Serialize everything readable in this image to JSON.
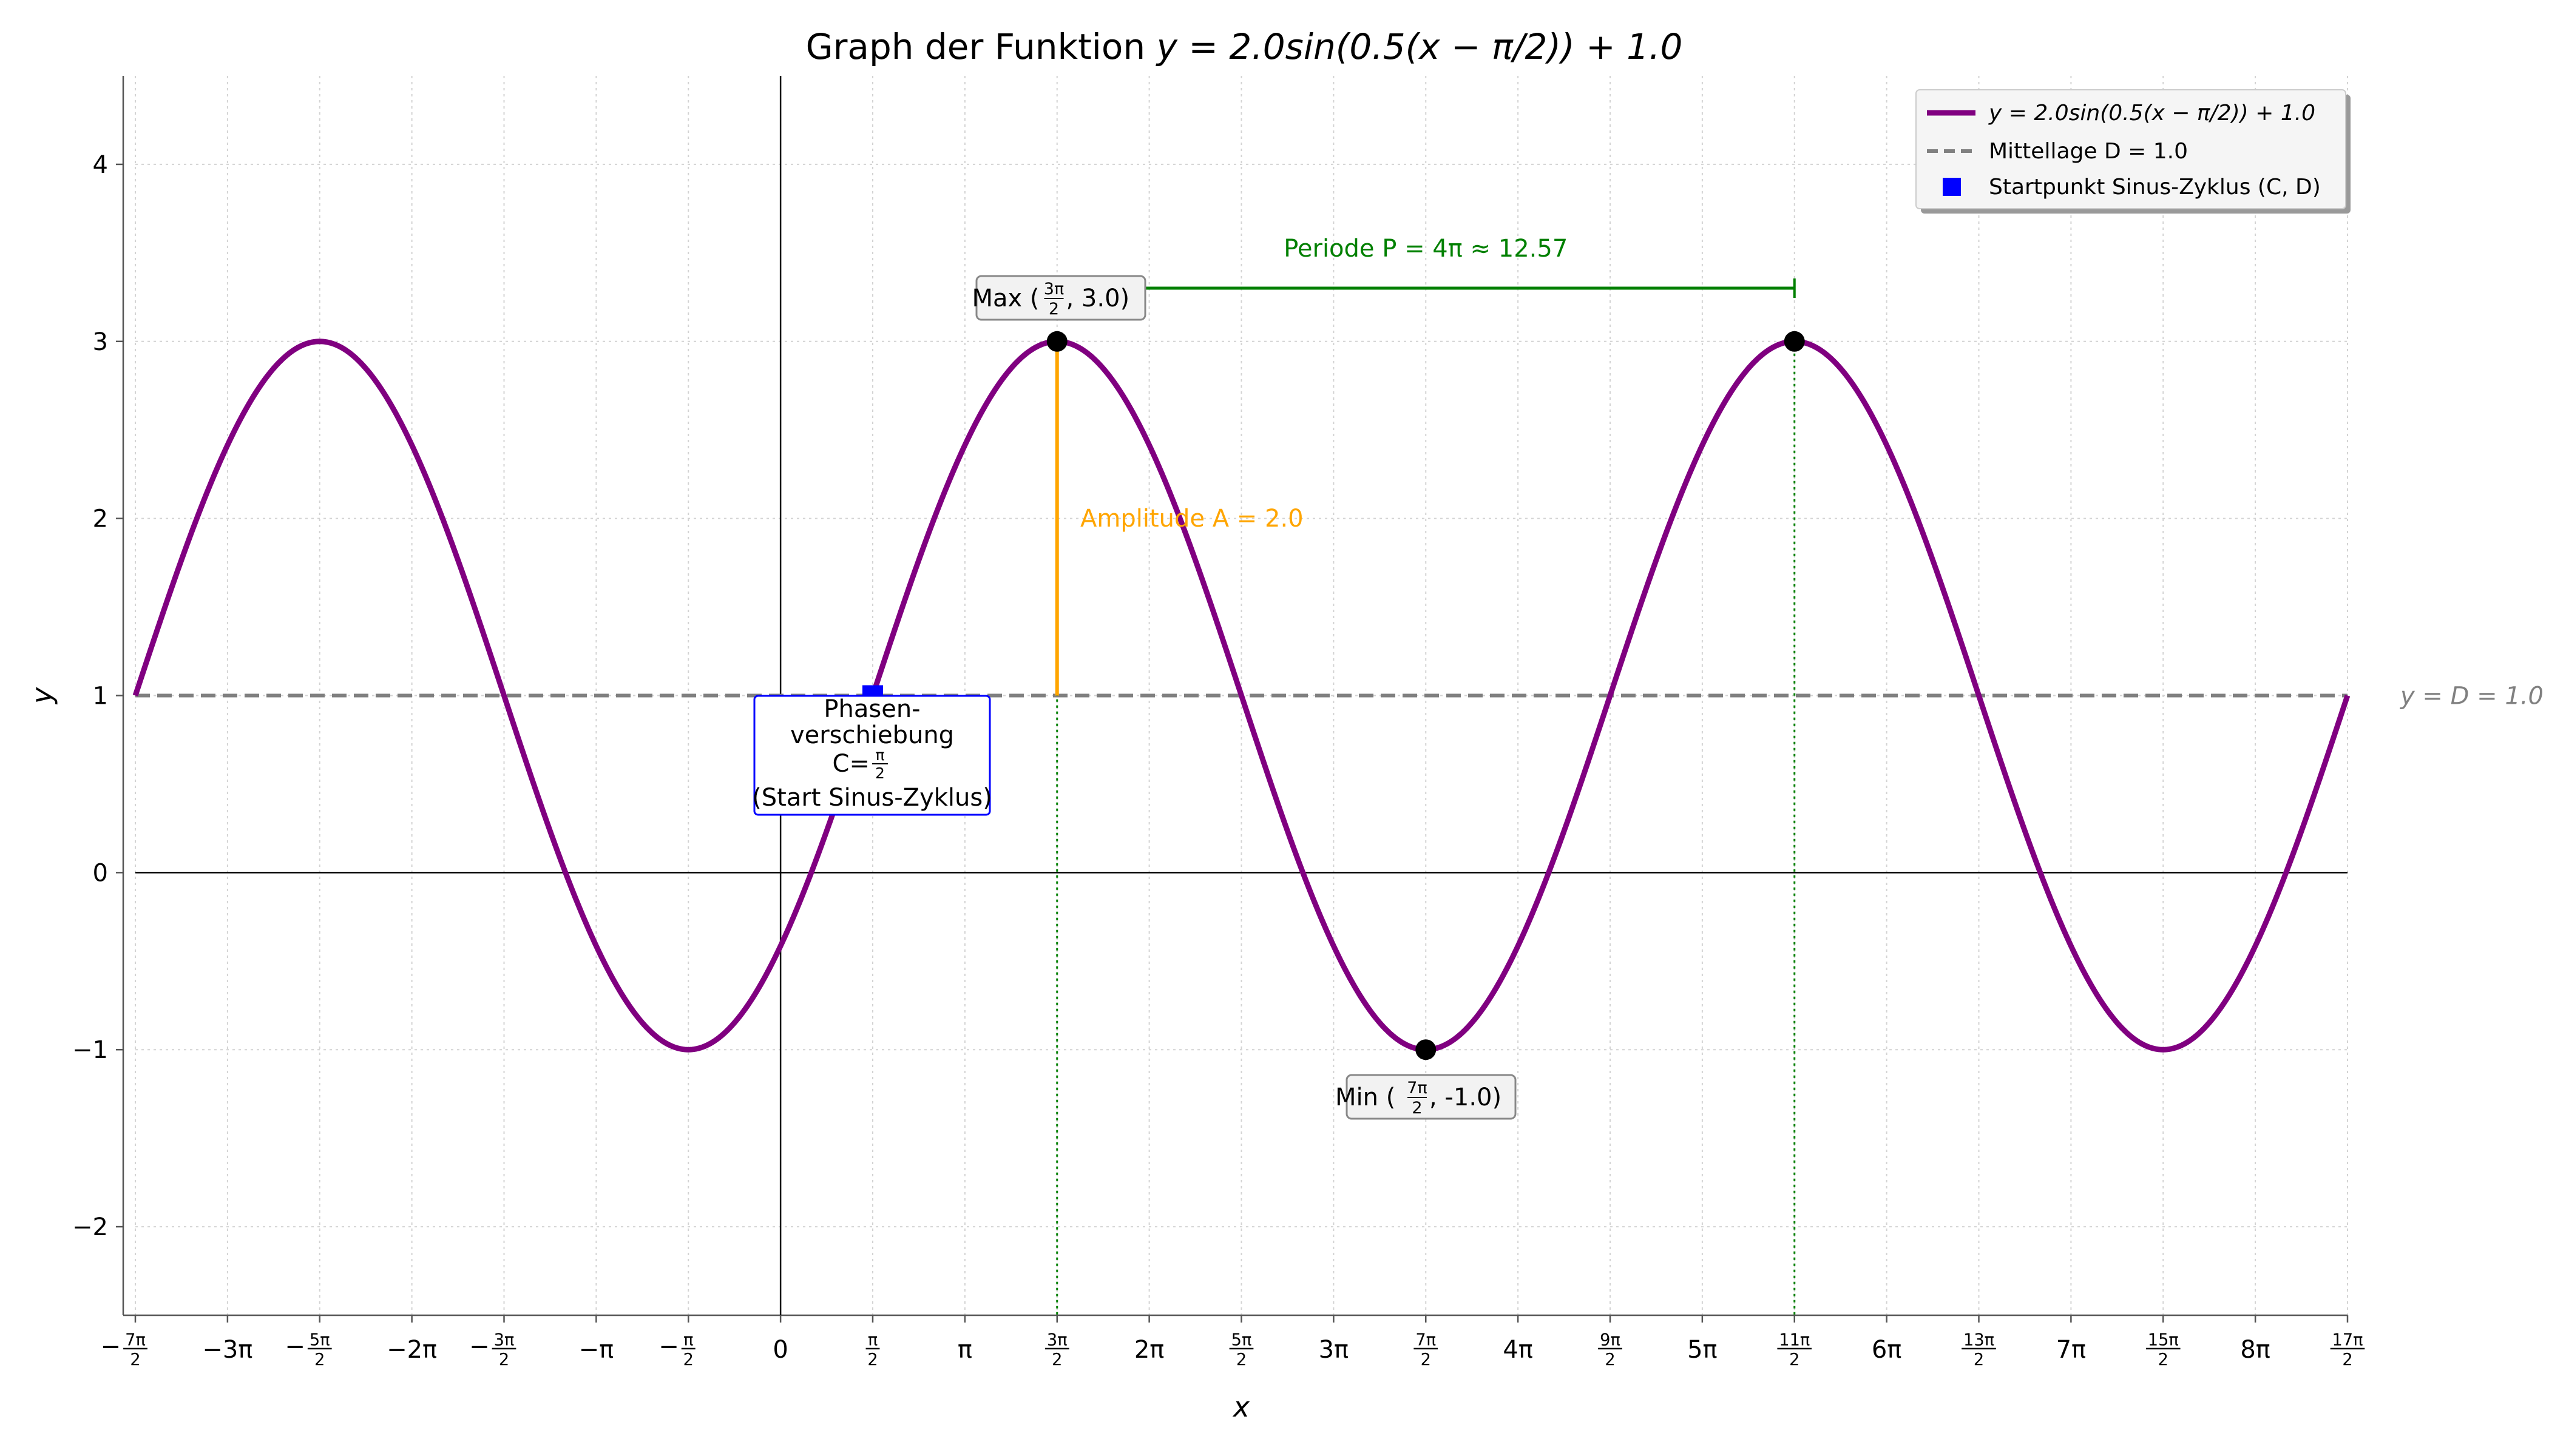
{
  "chart_data": {
    "type": "line",
    "title_prefix": "Graph der Funktion",
    "title_formula": "y = 2.0sin(0.5(x − π/2)) + 1.0",
    "xlabel": "x",
    "ylabel": "y",
    "xlim_in_pi": [
      -3.5,
      8.5
    ],
    "ylim": [
      -2.5,
      4.5
    ],
    "grid": true,
    "function": {
      "A": 2.0,
      "B": 0.5,
      "C_in_pi": 0.5,
      "D": 1.0
    },
    "x_ticks": [
      {
        "v": -3.5,
        "label": "-7π/2"
      },
      {
        "v": -3,
        "label": "−3π"
      },
      {
        "v": -2.5,
        "label": "-5π/2"
      },
      {
        "v": -2,
        "label": "−2π"
      },
      {
        "v": -1.5,
        "label": "-3π/2"
      },
      {
        "v": -1,
        "label": "−π"
      },
      {
        "v": -0.5,
        "label": "-π/2"
      },
      {
        "v": 0,
        "label": "0"
      },
      {
        "v": 0.5,
        "label": "π/2"
      },
      {
        "v": 1,
        "label": "π"
      },
      {
        "v": 1.5,
        "label": "3π/2"
      },
      {
        "v": 2,
        "label": "2π"
      },
      {
        "v": 2.5,
        "label": "5π/2"
      },
      {
        "v": 3,
        "label": "3π"
      },
      {
        "v": 3.5,
        "label": "7π/2"
      },
      {
        "v": 4,
        "label": "4π"
      },
      {
        "v": 4.5,
        "label": "9π/2"
      },
      {
        "v": 5,
        "label": "5π"
      },
      {
        "v": 5.5,
        "label": "11π/2"
      },
      {
        "v": 6,
        "label": "6π"
      },
      {
        "v": 6.5,
        "label": "13π/2"
      },
      {
        "v": 7,
        "label": "7π"
      },
      {
        "v": 7.5,
        "label": "15π/2"
      },
      {
        "v": 8,
        "label": "8π"
      },
      {
        "v": 8.5,
        "label": "17π/2"
      }
    ],
    "y_ticks": [
      {
        "v": -2,
        "label": "−2"
      },
      {
        "v": -1,
        "label": "−1"
      },
      {
        "v": 0,
        "label": "0"
      },
      {
        "v": 1,
        "label": "1"
      },
      {
        "v": 2,
        "label": "2"
      },
      {
        "v": 3,
        "label": "3"
      },
      {
        "v": 4,
        "label": "4"
      }
    ],
    "points": {
      "max1": {
        "x_in_pi": 1.5,
        "y": 3.0,
        "label_prefix": "Max (",
        "label_frac": "3π/2",
        "label_suffix": ", 3.0)"
      },
      "max2": {
        "x_in_pi": 5.5,
        "y": 3.0
      },
      "min": {
        "x_in_pi": 3.5,
        "y": -1.0,
        "label_prefix": "Min (",
        "label_frac": "7π/2",
        "label_suffix": ", -1.0)"
      },
      "start": {
        "x_in_pi": 0.5,
        "y": 1.0
      }
    },
    "annotations": {
      "period_label": "Periode P =  4π  ≈ 12.57",
      "amplitude_label": "Amplitude A = 2.0",
      "midline_label": "y = D = 1.0",
      "phase_line1": "Phasen-",
      "phase_line2": "verschiebung",
      "phase_line3_prefix": "C=",
      "phase_line3_frac": "π/2",
      "phase_line4": "(Start Sinus-Zyklus)"
    },
    "legend": {
      "placement": "top-right",
      "entries": [
        {
          "label": "y = 2.0sin(0.5(x − π/2)) + 1.0"
        },
        {
          "label": "Mittellage D = 1.0"
        },
        {
          "label": "Startpunkt Sinus-Zyklus (C, D)"
        }
      ]
    },
    "colors": {
      "curve": "#800080",
      "midline": "#808080",
      "period": "#008000",
      "amplitude": "#FFA500",
      "start": "#0000FF",
      "points": "#000000",
      "grid": "#d3d3d3"
    }
  }
}
